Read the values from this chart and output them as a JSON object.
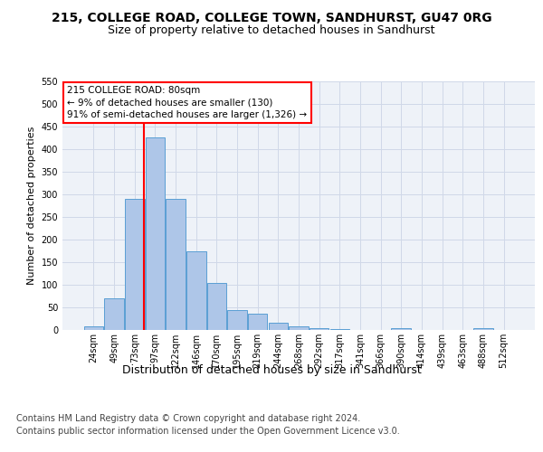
{
  "title1": "215, COLLEGE ROAD, COLLEGE TOWN, SANDHURST, GU47 0RG",
  "title2": "Size of property relative to detached houses in Sandhurst",
  "xlabel": "Distribution of detached houses by size in Sandhurst",
  "ylabel": "Number of detached properties",
  "footnote1": "Contains HM Land Registry data © Crown copyright and database right 2024.",
  "footnote2": "Contains public sector information licensed under the Open Government Licence v3.0.",
  "bar_labels": [
    "24sqm",
    "49sqm",
    "73sqm",
    "97sqm",
    "122sqm",
    "146sqm",
    "170sqm",
    "195sqm",
    "219sqm",
    "244sqm",
    "268sqm",
    "292sqm",
    "317sqm",
    "341sqm",
    "366sqm",
    "390sqm",
    "414sqm",
    "439sqm",
    "463sqm",
    "488sqm",
    "512sqm"
  ],
  "bar_values": [
    8,
    70,
    290,
    425,
    290,
    175,
    105,
    44,
    37,
    16,
    9,
    5,
    3,
    1,
    0,
    4,
    0,
    0,
    0,
    4,
    0
  ],
  "bar_color": "#aec6e8",
  "bar_edge_color": "#5a9fd4",
  "grid_color": "#d0d8e8",
  "vline_color": "red",
  "vline_x": 2.45,
  "annotation_text": "215 COLLEGE ROAD: 80sqm\n← 9% of detached houses are smaller (130)\n91% of semi-detached houses are larger (1,326) →",
  "ylim": [
    0,
    550
  ],
  "yticks": [
    0,
    50,
    100,
    150,
    200,
    250,
    300,
    350,
    400,
    450,
    500,
    550
  ],
  "background_color": "#eef2f8",
  "fig_background": "#ffffff",
  "title1_fontsize": 10,
  "title2_fontsize": 9,
  "xlabel_fontsize": 9,
  "ylabel_fontsize": 8,
  "footnote_fontsize": 7,
  "tick_fontsize": 7,
  "ann_fontsize": 7.5
}
